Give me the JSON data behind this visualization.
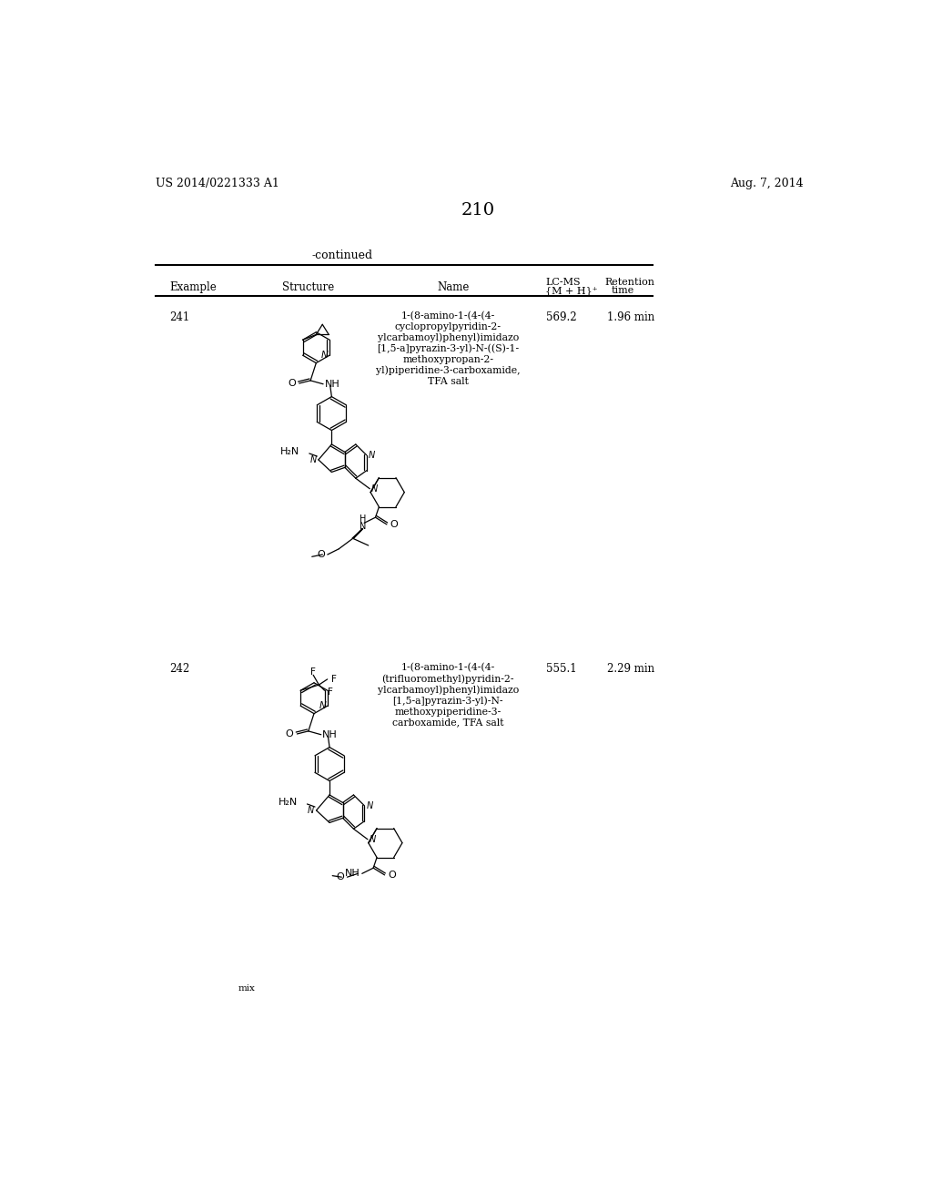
{
  "page_number": "210",
  "patent_number": "US 2014/0221333 A1",
  "patent_date": "Aug. 7, 2014",
  "continued_text": "-continued",
  "table_headers": {
    "col1": "Example",
    "col2": "Structure",
    "col3": "Name",
    "col4_line1": "LC-MS",
    "col4_line2": "{M + H}⁺",
    "col5_line1": "Retention",
    "col5_line2": "time"
  },
  "rows": [
    {
      "example": "241",
      "name": "1-(8-amino-1-(4-(4-\ncyclopropylpyridin-2-\nylcarbamoyl)phenyl)imidazo\n[1,5-a]pyrazin-3-yl)-N-((S)-1-\nmethoxypropan-2-\nyl)piperidine-3-carboxamide,\nTFA salt",
      "lcms": "569.2",
      "retention": "1.96 min"
    },
    {
      "example": "242",
      "name": "1-(8-amino-1-(4-(4-\n(trifluoromethyl)pyridin-2-\nylcarbamoyl)phenyl)imidazo\n[1,5-a]pyrazin-3-yl)-N-\nmethoxypiperidine-3-\ncarboxamide, TFA salt",
      "lcms": "555.1",
      "retention": "2.29 min"
    }
  ],
  "background_color": "#ffffff",
  "text_color": "#000000",
  "line_color": "#000000"
}
